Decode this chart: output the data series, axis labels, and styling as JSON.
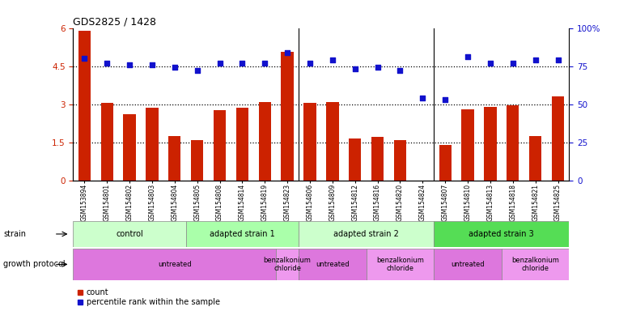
{
  "title": "GDS2825 / 1428",
  "samples": [
    "GSM153894",
    "GSM154801",
    "GSM154802",
    "GSM154803",
    "GSM154804",
    "GSM154805",
    "GSM154808",
    "GSM154814",
    "GSM154819",
    "GSM154823",
    "GSM154806",
    "GSM154809",
    "GSM154812",
    "GSM154816",
    "GSM154820",
    "GSM154824",
    "GSM154807",
    "GSM154810",
    "GSM154813",
    "GSM154818",
    "GSM154821",
    "GSM154825"
  ],
  "bar_values": [
    5.9,
    3.05,
    2.6,
    2.85,
    1.75,
    1.6,
    2.75,
    2.85,
    3.1,
    5.05,
    3.05,
    3.1,
    1.65,
    1.7,
    1.6,
    0.0,
    1.4,
    2.8,
    2.9,
    2.95,
    1.75,
    3.3
  ],
  "dot_values_pct": [
    80,
    77,
    76,
    76,
    74,
    72,
    77,
    77,
    77,
    84,
    77,
    79,
    73,
    74,
    72,
    54,
    53,
    81,
    77,
    77,
    79,
    79
  ],
  "bar_color": "#cc2200",
  "dot_color": "#1111cc",
  "ylim_left": [
    0,
    6
  ],
  "ylim_right": [
    0,
    100
  ],
  "yticks_left": [
    0,
    1.5,
    3.0,
    4.5,
    6.0
  ],
  "ytick_labels_left": [
    "0",
    "1.5",
    "3",
    "4.5",
    "6"
  ],
  "yticks_right": [
    0,
    25,
    50,
    75,
    100
  ],
  "ytick_labels_right": [
    "0",
    "25",
    "50",
    "75",
    "100%"
  ],
  "dotted_lines_pct": [
    25,
    50,
    75
  ],
  "strain_groups": [
    {
      "label": "control",
      "start": 0,
      "end": 4,
      "color": "#ccffcc"
    },
    {
      "label": "adapted strain 1",
      "start": 5,
      "end": 9,
      "color": "#aaffaa"
    },
    {
      "label": "adapted strain 2",
      "start": 10,
      "end": 15,
      "color": "#ccffcc"
    },
    {
      "label": "adapted strain 3",
      "start": 16,
      "end": 21,
      "color": "#55dd55"
    }
  ],
  "protocol_groups": [
    {
      "label": "untreated",
      "start": 0,
      "end": 8,
      "color": "#dd77dd"
    },
    {
      "label": "benzalkonium\nchloride",
      "start": 9,
      "end": 9,
      "color": "#ee99ee"
    },
    {
      "label": "untreated",
      "start": 10,
      "end": 12,
      "color": "#dd77dd"
    },
    {
      "label": "benzalkonium\nchloride",
      "start": 13,
      "end": 15,
      "color": "#ee99ee"
    },
    {
      "label": "untreated",
      "start": 16,
      "end": 18,
      "color": "#dd77dd"
    },
    {
      "label": "benzalkonium\nchloride",
      "start": 19,
      "end": 21,
      "color": "#ee99ee"
    }
  ],
  "background_color": "#ffffff"
}
